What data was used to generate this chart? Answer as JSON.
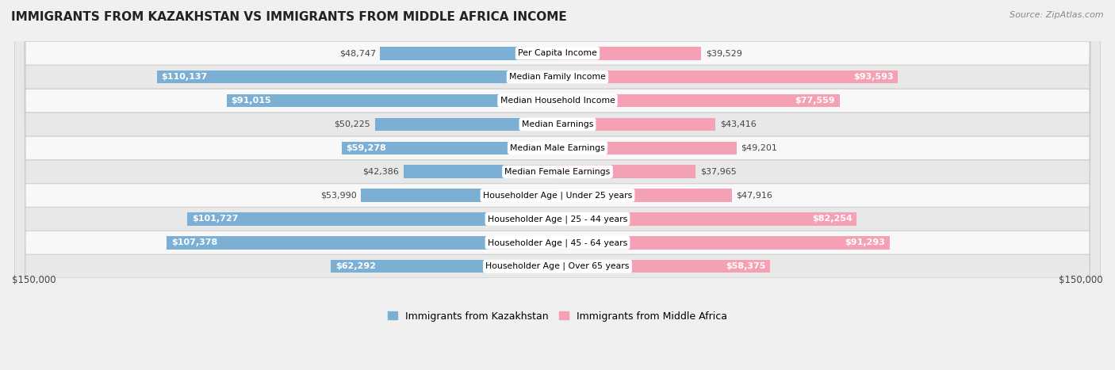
{
  "title": "IMMIGRANTS FROM KAZAKHSTAN VS IMMIGRANTS FROM MIDDLE AFRICA INCOME",
  "source": "Source: ZipAtlas.com",
  "categories": [
    "Per Capita Income",
    "Median Family Income",
    "Median Household Income",
    "Median Earnings",
    "Median Male Earnings",
    "Median Female Earnings",
    "Householder Age | Under 25 years",
    "Householder Age | 25 - 44 years",
    "Householder Age | 45 - 64 years",
    "Householder Age | Over 65 years"
  ],
  "kazakhstan_values": [
    48747,
    110137,
    91015,
    50225,
    59278,
    42386,
    53990,
    101727,
    107378,
    62292
  ],
  "middle_africa_values": [
    39529,
    93593,
    77559,
    43416,
    49201,
    37965,
    47916,
    82254,
    91293,
    58375
  ],
  "kazakhstan_labels": [
    "$48,747",
    "$110,137",
    "$91,015",
    "$50,225",
    "$59,278",
    "$42,386",
    "$53,990",
    "$101,727",
    "$107,378",
    "$62,292"
  ],
  "middle_africa_labels": [
    "$39,529",
    "$93,593",
    "$77,559",
    "$43,416",
    "$49,201",
    "$37,965",
    "$47,916",
    "$82,254",
    "$91,293",
    "$58,375"
  ],
  "kazakhstan_color": "#7bafd4",
  "middle_africa_color": "#f4a0b5",
  "max_value": 150000,
  "bar_height": 0.55,
  "background_color": "#f0f0f0",
  "row_bg_light": "#f8f8f8",
  "row_bg_dark": "#e8e8e8",
  "legend_kazakhstan": "Immigrants from Kazakhstan",
  "legend_middle_africa": "Immigrants from Middle Africa",
  "xlabel_left": "$150,000",
  "xlabel_right": "$150,000",
  "inside_label_threshold": 58000,
  "label_fontsize": 8.0,
  "cat_fontsize": 7.8
}
